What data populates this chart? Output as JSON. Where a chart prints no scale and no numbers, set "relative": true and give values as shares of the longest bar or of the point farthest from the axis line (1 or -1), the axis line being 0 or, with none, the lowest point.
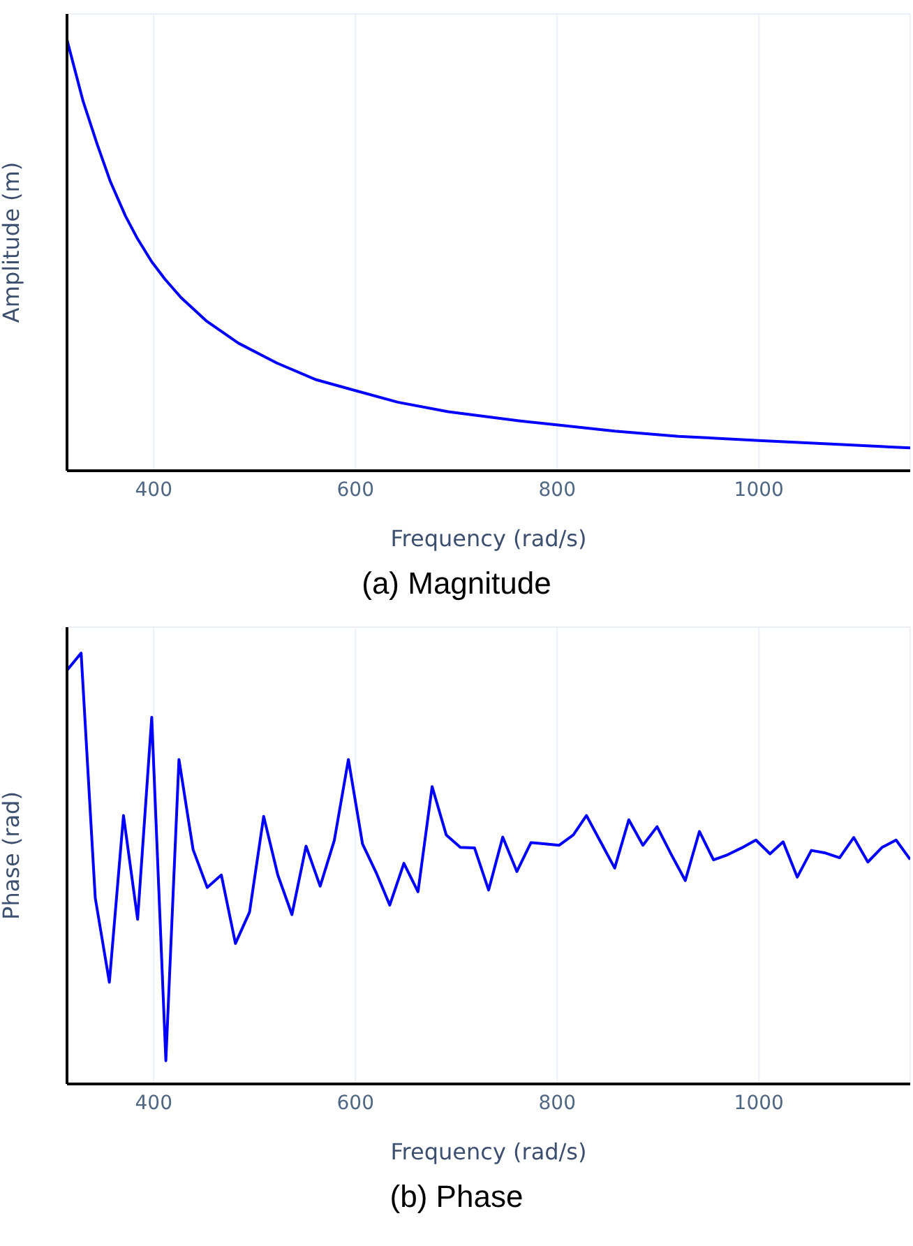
{
  "chart_data": [
    {
      "type": "line",
      "title": "(a) Magnitude",
      "xlabel": "Frequency (rad/s)",
      "ylabel": "Amplitude (m)",
      "relative": true,
      "grid": true,
      "marker": "none",
      "line_style": "solid",
      "xlim": [
        314,
        1150
      ],
      "xticks": [
        400,
        600,
        800,
        1000
      ],
      "series": [
        {
          "color": "#0000ff",
          "x": [
            314,
            330,
            344,
            357,
            372,
            384,
            398,
            411,
            427,
            452,
            484,
            522,
            560,
            600,
            642,
            692,
            762,
            801,
            857,
            920,
            1000,
            1079,
            1150
          ],
          "values": [
            1,
            0.857,
            0.757,
            0.671,
            0.591,
            0.538,
            0.485,
            0.445,
            0.402,
            0.348,
            0.296,
            0.25,
            0.212,
            0.186,
            0.159,
            0.137,
            0.116,
            0.106,
            0.092,
            0.08,
            0.07,
            0.061,
            0.053
          ]
        }
      ]
    },
    {
      "type": "line",
      "title": "(b) Phase",
      "xlabel": "Frequency (rad/s)",
      "ylabel": "Phase (rad)",
      "relative": true,
      "grid": true,
      "marker": "none",
      "line_style": "solid",
      "xlim": [
        314,
        1150
      ],
      "xticks": [
        400,
        600,
        800,
        1000
      ],
      "series": [
        {
          "color": "#0000ff",
          "x": [
            314,
            328,
            342,
            356,
            370,
            384,
            398,
            412,
            425,
            439,
            453,
            467,
            481,
            495,
            509,
            523,
            537,
            551,
            565,
            579,
            593,
            607,
            621,
            634,
            648,
            662,
            676,
            690,
            704,
            718,
            732,
            746,
            760,
            774,
            788,
            802,
            816,
            829,
            843,
            857,
            871,
            885,
            899,
            913,
            927,
            941,
            955,
            969,
            983,
            997,
            1011,
            1024,
            1038,
            1052,
            1066,
            1080,
            1094,
            1108,
            1122,
            1136,
            1150
          ],
          "values": [
            0.96,
            1,
            0.432,
            0.236,
            0.623,
            0.382,
            0.851,
            0.054,
            0.753,
            0.544,
            0.456,
            0.485,
            0.326,
            0.399,
            0.621,
            0.485,
            0.393,
            0.552,
            0.459,
            0.565,
            0.753,
            0.557,
            0.488,
            0.415,
            0.512,
            0.446,
            0.69,
            0.578,
            0.549,
            0.548,
            0.45,
            0.573,
            0.493,
            0.56,
            0.557,
            0.554,
            0.578,
            0.623,
            0.562,
            0.501,
            0.613,
            0.554,
            0.597,
            0.533,
            0.472,
            0.586,
            0.52,
            0.532,
            0.548,
            0.566,
            0.534,
            0.562,
            0.48,
            0.542,
            0.536,
            0.525,
            0.572,
            0.515,
            0.549,
            0.566,
            0.521
          ]
        }
      ]
    }
  ]
}
